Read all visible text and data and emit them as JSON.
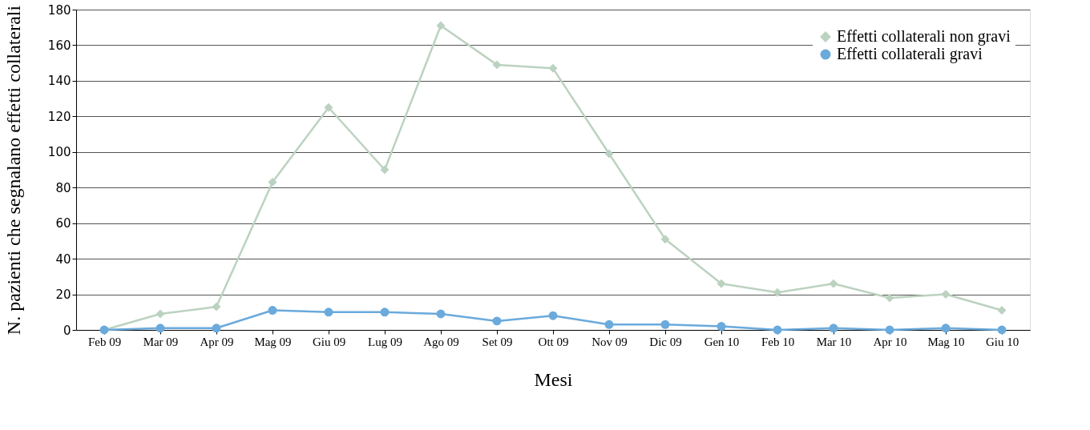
{
  "chart_data": {
    "type": "line",
    "xlabel": "Mesi",
    "ylabel": "N. pazienti che segnalano effetti collaterali",
    "categories": [
      "Feb 09",
      "Mar 09",
      "Apr 09",
      "Mag 09",
      "Giu 09",
      "Lug 09",
      "Ago 09",
      "Set 09",
      "Ott 09",
      "Nov 09",
      "Dic 09",
      "Gen 10",
      "Feb 10",
      "Mar 10",
      "Apr 10",
      "Mag 10",
      "Giu 10"
    ],
    "series": [
      {
        "name": "Effetti collaterali non gravi",
        "color": "#bcd2c0",
        "marker": "diamond",
        "values": [
          0,
          9,
          13,
          83,
          125,
          90,
          171,
          149,
          147,
          99,
          51,
          26,
          21,
          26,
          18,
          20,
          11
        ]
      },
      {
        "name": "Effetti collaterali gravi",
        "color": "#6aaadc",
        "marker": "circle",
        "values": [
          0,
          1,
          1,
          11,
          10,
          10,
          9,
          5,
          8,
          3,
          3,
          2,
          0,
          1,
          0,
          1,
          0
        ]
      }
    ],
    "ylim": [
      0,
      180
    ],
    "yticks": [
      0,
      20,
      40,
      60,
      80,
      100,
      120,
      140,
      160,
      180
    ],
    "grid": "y",
    "legend": "top right",
    "line_style": "solid"
  }
}
